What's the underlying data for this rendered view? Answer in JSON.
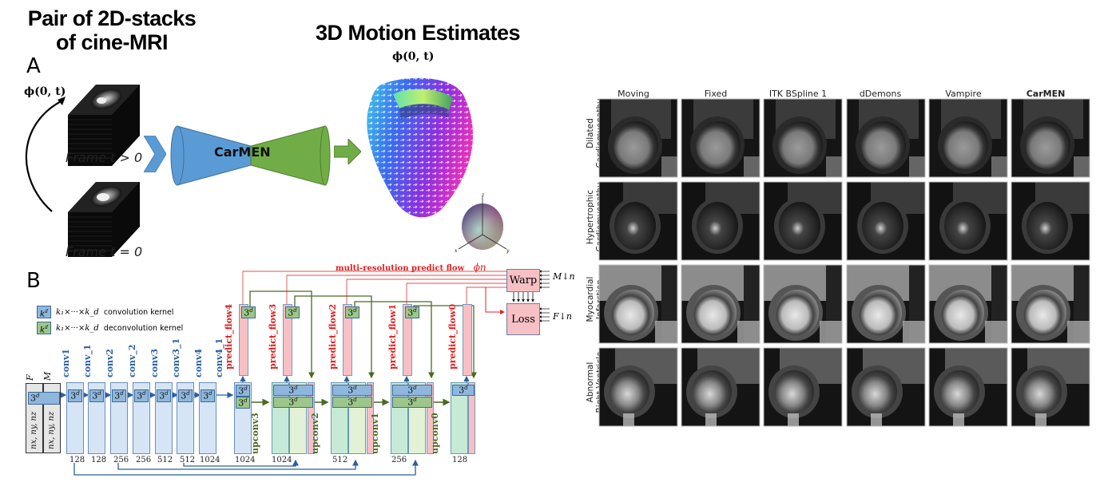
{
  "panel_a": {
    "letter": "A",
    "title_left": "Pair of 2D-stacks of cine-MRI",
    "title_left_line1": "Pair of 2D-stacks",
    "title_left_line2": "of cine-MRI",
    "title_right": "3D Motion Estimates",
    "phi_label_left": "ϕ(0, t)",
    "phi_label_right": "ϕ(0, t)",
    "frame_top_label": "Frame t > 0",
    "frame_bottom_label": "Frame t = 0",
    "network_label": "CarMEN",
    "colors": {
      "encoder": "#5b9bd5",
      "decoder": "#70ad47"
    },
    "colorball_axes": [
      "x",
      "y",
      "z"
    ]
  },
  "panel_b": {
    "letter": "B",
    "legend": [
      {
        "symbol": "k",
        "sup": "d",
        "formula": "k₁×···×k_d",
        "text": "convolution kernel",
        "color": "#8fb6dc"
      },
      {
        "symbol": "k",
        "sup": "d",
        "formula": "k₁×···×k_d",
        "text": "deconvolution kernel",
        "color": "#9cc68a"
      }
    ],
    "inputs": [
      {
        "name": "F",
        "dims": "nx, ny, nz"
      },
      {
        "name": "M",
        "dims": "nx, ny, nz"
      }
    ],
    "kernel_label": "3d",
    "encoder_layers": [
      {
        "name": "conv1",
        "channels": "128"
      },
      {
        "name": "conv_1",
        "channels": "128"
      },
      {
        "name": "conv2",
        "channels": "256"
      },
      {
        "name": "conv_2",
        "channels": "256"
      },
      {
        "name": "conv3",
        "channels": "512"
      },
      {
        "name": "conv3_1",
        "channels": "512"
      },
      {
        "name": "conv4",
        "channels": "1024"
      },
      {
        "name": "conv4_1",
        "channels": ""
      }
    ],
    "decoder_blocks": [
      {
        "channels": "1024",
        "predict": "predict_flow4",
        "upconv": "upconv3"
      },
      {
        "channels": "1024",
        "predict": "predict_flow3",
        "upconv": "upconv2"
      },
      {
        "channels": "512",
        "predict": "predict_flow2",
        "upconv": "upconv1"
      },
      {
        "channels": "256",
        "predict": "predict_flow1",
        "upconv": "upconv0"
      },
      {
        "channels": "128",
        "predict": "predict_flow0",
        "upconv": ""
      }
    ],
    "multi_res_label": "multi-resolution predict flow",
    "phi_n": "ϕn",
    "warp_label": "Warp",
    "loss_label": "Loss",
    "m_down": "M↓n",
    "f_down": "F↓n",
    "colors": {
      "flow_red": "#e02020",
      "skip_blue": "#2b5f9e",
      "deconv_green": "#4a6a20"
    }
  },
  "comparison": {
    "columns": [
      "Moving",
      "Fixed",
      "ITK BSpline 1",
      "dDemons",
      "Vampire",
      "CarMEN"
    ],
    "rows": [
      {
        "line1": "Dilated",
        "line2": "Cardiomyopathy"
      },
      {
        "line1": "Hypertrophic",
        "line2": "Cardiomyopathy"
      },
      {
        "line1": "Myocardial",
        "line2": "Infarction"
      },
      {
        "line1": "Abnormal",
        "line2": "Right Ventricle"
      }
    ]
  }
}
